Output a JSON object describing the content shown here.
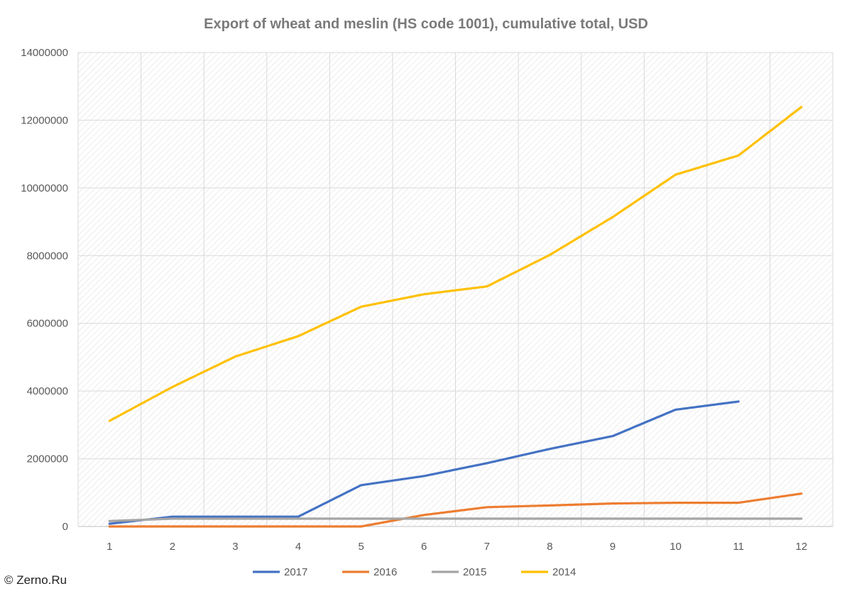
{
  "chart_data": {
    "type": "line",
    "title": "Export of wheat and meslin (HS code 1001), cumulative total, USD",
    "xlabel": "",
    "ylabel": "",
    "categories": [
      "1",
      "2",
      "3",
      "4",
      "5",
      "6",
      "7",
      "8",
      "9",
      "10",
      "11",
      "12"
    ],
    "ylim": [
      0,
      14000000
    ],
    "yticks": [
      0,
      2000000,
      4000000,
      6000000,
      8000000,
      10000000,
      12000000,
      14000000
    ],
    "grid": true,
    "legend_position": "bottom",
    "series": [
      {
        "name": "2017",
        "color": "#4472c4",
        "values": [
          80000,
          290000,
          290000,
          290000,
          1220000,
          1490000,
          1870000,
          2290000,
          2670000,
          3450000,
          3690000,
          null
        ]
      },
      {
        "name": "2016",
        "color": "#ed7d31",
        "values": [
          0,
          0,
          0,
          0,
          0,
          340000,
          570000,
          620000,
          680000,
          700000,
          700000,
          970000
        ]
      },
      {
        "name": "2015",
        "color": "#a5a5a5",
        "values": [
          160000,
          230000,
          230000,
          230000,
          230000,
          230000,
          230000,
          230000,
          230000,
          230000,
          230000,
          230000
        ]
      },
      {
        "name": "2014",
        "color": "#ffc000",
        "values": [
          3120000,
          4120000,
          5020000,
          5620000,
          6490000,
          6860000,
          7090000,
          8020000,
          9140000,
          10390000,
          10960000,
          12390000
        ]
      }
    ]
  },
  "footer": {
    "copyright": "© Zerno.Ru"
  }
}
